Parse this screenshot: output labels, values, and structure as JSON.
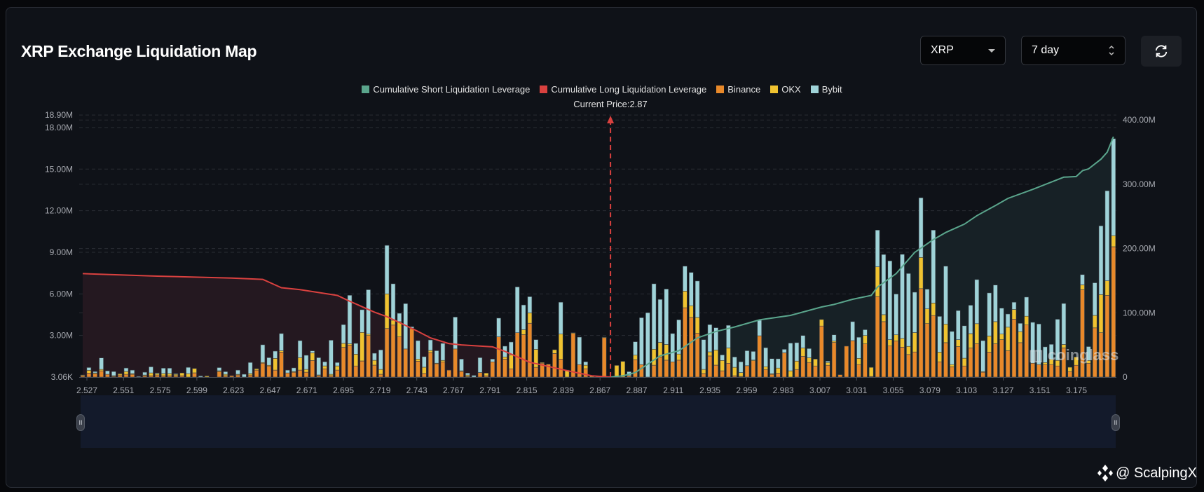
{
  "header": {
    "title": "XRP Exchange Liquidation Map",
    "symbol_select": {
      "value": "XRP",
      "icon": "caret-down-icon"
    },
    "range_select": {
      "value": "7 day",
      "icon": "up-down-chevron-icon"
    },
    "refresh_icon": "refresh-icon"
  },
  "watermarks": {
    "coinglass": "coinglass",
    "author": "@ ScalpingX"
  },
  "chart_data": {
    "type": "bar",
    "stacked": true,
    "legend": [
      {
        "name": "Cumulative Short Liquidation Leverage",
        "color": "#5aa58c"
      },
      {
        "name": "Cumulative Long Liquidation Leverage",
        "color": "#d9413f"
      },
      {
        "name": "Binance",
        "color": "#e8892a"
      },
      {
        "name": "OKX",
        "color": "#f0c330"
      },
      {
        "name": "Bybit",
        "color": "#9fd3d8"
      }
    ],
    "legend_position": "top-center",
    "current_price": {
      "label": "Current Price:2.87",
      "value": 2.87,
      "color": "#d9413f"
    },
    "x_tick_labels": [
      "2.527",
      "2.551",
      "2.575",
      "2.599",
      "2.623",
      "2.647",
      "2.671",
      "2.695",
      "2.719",
      "2.743",
      "2.767",
      "2.791",
      "2.815",
      "2.839",
      "2.867",
      "2.887",
      "2.911",
      "2.935",
      "2.959",
      "2.983",
      "3.007",
      "3.031",
      "3.055",
      "3.079",
      "3.103",
      "3.127",
      "3.151",
      "3.175"
    ],
    "y_left": {
      "ticks": [
        {
          "label": "3.06K",
          "value": 0.00306
        },
        {
          "label": "3.00M",
          "value": 3
        },
        {
          "label": "6.00M",
          "value": 6
        },
        {
          "label": "9.00M",
          "value": 9
        },
        {
          "label": "12.00M",
          "value": 12
        },
        {
          "label": "15.00M",
          "value": 15
        },
        {
          "label": "18.00M",
          "value": 18
        },
        {
          "label": "18.90M",
          "value": 18.9
        }
      ],
      "range_millions": [
        0,
        18.9
      ]
    },
    "y_right": {
      "ticks": [
        {
          "label": "0",
          "value": 0
        },
        {
          "label": "100.00M",
          "value": 100
        },
        {
          "label": "200.00M",
          "value": 200
        },
        {
          "label": "300.00M",
          "value": 300
        },
        {
          "label": "400.00M",
          "value": 400
        }
      ],
      "range_millions": [
        0,
        404
      ]
    },
    "grid": true,
    "x": [
      2.53,
      2.534,
      2.538,
      2.542,
      2.546,
      2.55,
      2.554,
      2.558,
      2.562,
      2.566,
      2.57,
      2.574,
      2.578,
      2.582,
      2.586,
      2.59,
      2.594,
      2.598,
      2.602,
      2.606,
      2.61,
      2.614,
      2.618,
      2.622,
      2.626,
      2.63,
      2.634,
      2.638,
      2.642,
      2.646,
      2.65,
      2.654,
      2.658,
      2.662,
      2.666,
      2.67,
      2.674,
      2.678,
      2.682,
      2.686,
      2.69,
      2.694,
      2.698,
      2.702,
      2.706,
      2.71,
      2.714,
      2.718,
      2.722,
      2.726,
      2.73,
      2.734,
      2.738,
      2.742,
      2.746,
      2.75,
      2.754,
      2.758,
      2.762,
      2.766,
      2.77,
      2.774,
      2.778,
      2.782,
      2.786,
      2.79,
      2.794,
      2.798,
      2.802,
      2.806,
      2.81,
      2.814,
      2.818,
      2.822,
      2.826,
      2.83,
      2.834,
      2.838,
      2.842,
      2.846,
      2.85,
      2.854,
      2.858,
      2.862,
      2.866,
      2.87,
      2.874,
      2.878,
      2.882,
      2.886,
      2.89,
      2.894,
      2.898,
      2.902,
      2.906,
      2.91,
      2.914,
      2.918,
      2.922,
      2.926,
      2.93,
      2.934,
      2.938,
      2.942,
      2.946,
      2.95,
      2.954,
      2.958,
      2.962,
      2.966,
      2.97,
      2.974,
      2.978,
      2.982,
      2.986,
      2.99,
      2.994,
      2.998,
      3.002,
      3.006,
      3.01,
      3.014,
      3.018,
      3.022,
      3.026,
      3.03,
      3.034,
      3.038,
      3.042,
      3.046,
      3.05,
      3.054,
      3.058,
      3.062,
      3.066,
      3.07,
      3.074,
      3.078,
      3.082,
      3.086,
      3.09,
      3.094,
      3.098,
      3.102,
      3.106,
      3.11,
      3.114,
      3.118,
      3.122,
      3.126,
      3.13,
      3.134,
      3.138,
      3.142,
      3.146,
      3.15,
      3.154,
      3.158,
      3.162,
      3.166,
      3.17,
      3.174,
      3.178,
      3.182,
      3.186,
      3.19,
      3.194
    ],
    "series": [
      {
        "name": "Binance",
        "unit": "M",
        "values": [
          0.1,
          0.29,
          0.25,
          0.45,
          0.2,
          0.05,
          0.15,
          0.2,
          0.2,
          0,
          0.1,
          0.1,
          0.15,
          0.1,
          0.1,
          0.1,
          0.1,
          0,
          0.3,
          0,
          0,
          0,
          0.4,
          0.1,
          0.1,
          0.15,
          0,
          0.15,
          0.5,
          1.0,
          0.8,
          0.5,
          1.8,
          0.3,
          0.35,
          0.5,
          0.35,
          1.2,
          0.1,
          0.6,
          0.1,
          0.5,
          2.14,
          2.3,
          0.8,
          1.16,
          3.0,
          0.86,
          0.2,
          3.5,
          3.75,
          2.9,
          2.03,
          3.5,
          1.15,
          0.26,
          1.77,
          0.97,
          1.1,
          0.5,
          2.03,
          0.42,
          0.05,
          0,
          0.33,
          0.1,
          1.1,
          2.9,
          1.3,
          0.6,
          3.2,
          3.07,
          3.88,
          0.7,
          1.0,
          0.93,
          1.7,
          1.3,
          0,
          3.15,
          0.9,
          0.6,
          0,
          0.03,
          2.85,
          0,
          0,
          0,
          0.1,
          1.25,
          0.9,
          0,
          0.85,
          1.45,
          1.22,
          1.1,
          1.22,
          5.0,
          4.3,
          3.15,
          0.25,
          1.52,
          0.86,
          0.45,
          1.0,
          0.1,
          0.05,
          0.82,
          1.18,
          2.98,
          0.55,
          0.2,
          0.27,
          1.75,
          0,
          0.55,
          1.5,
          1.05,
          0.8,
          3.68,
          0.85,
          2.5,
          0.17,
          2.23,
          2.63,
          0.9,
          2.4,
          0.05,
          5.8,
          4.0,
          2.24,
          2.6,
          2.16,
          1.63,
          1.81,
          6.38,
          3.86,
          4.44,
          1.1,
          2.48,
          0.74,
          2.2,
          0.8,
          2.1,
          2.4,
          0.35,
          1.8,
          2.4,
          2.7,
          1.9,
          4.18,
          2.48,
          3.76,
          1.0,
          0.9,
          0.9,
          0.9,
          0.8,
          2.1,
          0.4,
          0.85,
          6.3,
          1.0,
          3.55,
          3.2,
          5.9,
          9.4
        ]
      },
      {
        "name": "OKX",
        "unit": "M",
        "values": [
          0.05,
          0.2,
          0.05,
          0.1,
          0,
          0.05,
          0.09,
          0.2,
          0.05,
          0,
          0.05,
          0.2,
          0.1,
          0.15,
          0.15,
          0.1,
          0.2,
          0.25,
          0.32,
          0,
          0.08,
          0,
          0.05,
          0.1,
          0,
          0.05,
          0,
          0.1,
          0.1,
          0.05,
          0.05,
          0.85,
          0.1,
          0,
          0.05,
          0.9,
          0.2,
          0.55,
          0.05,
          0.2,
          0.1,
          0.3,
          0.29,
          0.1,
          0.85,
          2.06,
          0.1,
          0.35,
          0.35,
          2.5,
          0.35,
          1.1,
          0,
          0.03,
          0.15,
          0.45,
          0.15,
          0.03,
          0.1,
          0,
          0,
          0.03,
          0.1,
          0,
          0,
          0.19,
          0,
          0,
          0.15,
          1.0,
          0,
          0.35,
          0.75,
          1.3,
          0.05,
          0,
          0.27,
          1.8,
          0.5,
          0.05,
          0,
          0.25,
          0.07,
          0,
          0.03,
          0,
          0.84,
          1.13,
          0,
          0.33,
          0,
          0,
          1.16,
          1.05,
          1.13,
          0,
          0.44,
          1.2,
          0.85,
          1.15,
          0.3,
          0.3,
          1.09,
          0.75,
          1.1,
          0.6,
          0.27,
          0,
          0.05,
          0,
          0.2,
          0.05,
          0.38,
          0,
          0.45,
          0.6,
          0.6,
          0.35,
          0.5,
          0.47,
          0.2,
          0.1,
          0,
          0,
          0,
          0.45,
          0.6,
          0.65,
          2.15,
          0.5,
          0.46,
          0.45,
          0.63,
          0.58,
          1.4,
          2.25,
          1.06,
          0.9,
          0.7,
          1.34,
          0.16,
          0.5,
          0.56,
          1.03,
          1.45,
          0.05,
          1.16,
          1.6,
          0.4,
          1.7,
          0.7,
          0.8,
          0.63,
          0,
          0,
          0.15,
          0.4,
          0.4,
          0.25,
          0.31,
          0.6,
          0.35,
          0.2,
          0.9,
          2.75,
          1.05,
          0.8
        ]
      },
      {
        "name": "Bybit",
        "unit": "M",
        "values": [
          0,
          0.2,
          0.1,
          0.83,
          0.25,
          0.3,
          0,
          0.25,
          0.25,
          0.05,
          0.2,
          0.44,
          0.05,
          0.39,
          0.39,
          0.05,
          0,
          0.45,
          0,
          0.08,
          0,
          0,
          0.23,
          0.19,
          0,
          0.3,
          0.2,
          0.8,
          0,
          1.28,
          0.55,
          0.52,
          1.24,
          0.2,
          0.26,
          1.23,
          1.02,
          0.14,
          1.25,
          0.3,
          2.46,
          0.25,
          1.35,
          3.5,
          0.78,
          1.64,
          3.2,
          0.51,
          1.41,
          3.5,
          2.63,
          0.6,
          3.27,
          0.1,
          1.33,
          0.76,
          0.76,
          0.9,
          1.23,
          0,
          2.3,
          0.85,
          0.14,
          0.12,
          1.07,
          0,
          0.2,
          1.35,
          0.78,
          0.93,
          3.3,
          1.78,
          1.17,
          0.7,
          0,
          0,
          0,
          2.3,
          0,
          0,
          1.98,
          0.25,
          0,
          0,
          0,
          0.02,
          0,
          0,
          0.29,
          0.97,
          3.38,
          4.64,
          4.72,
          3.1,
          4.0,
          2.04,
          2.47,
          1.8,
          2.4,
          2.63,
          2.15,
          1.96,
          1.61,
          0.4,
          1.63,
          0.75,
          0.78,
          1.08,
          0.62,
          1.12,
          1.37,
          1.08,
          0.67,
          0.25,
          2.0,
          1.33,
          0.9,
          0.66,
          0,
          0,
          0.1,
          0.45,
          0,
          0,
          1.37,
          1.52,
          0.42,
          0,
          2.65,
          4.34,
          5.68,
          2.94,
          6.06,
          5.26,
          2.91,
          4.3,
          1.42,
          5.26,
          2.58,
          4.18,
          2.39,
          2.1,
          2.34,
          2.05,
          3.18,
          2.23,
          3.11,
          2.64,
          1.87,
          0.95,
          0.52,
          0.6,
          1.38,
          2.95,
          2.93,
          1.13,
          1.06,
          2.97,
          2.96,
          0,
          0,
          0.74,
          1.0,
          2.35,
          4.96,
          6.49,
          7.0
        ]
      }
    ],
    "cumulative_long": {
      "name": "Cumulative Long Liquidation Leverage",
      "axis": "right",
      "unit": "M",
      "points": [
        [
          2.53,
          161
        ],
        [
          2.578,
          157
        ],
        [
          2.626,
          154
        ],
        [
          2.646,
          152
        ],
        [
          2.658,
          139
        ],
        [
          2.67,
          136
        ],
        [
          2.686,
          130
        ],
        [
          2.694,
          127
        ],
        [
          2.702,
          118
        ],
        [
          2.718,
          101
        ],
        [
          2.726,
          94
        ],
        [
          2.734,
          85
        ],
        [
          2.746,
          71
        ],
        [
          2.754,
          61
        ],
        [
          2.766,
          52
        ],
        [
          2.774,
          50
        ],
        [
          2.794,
          47
        ],
        [
          2.802,
          40
        ],
        [
          2.818,
          23
        ],
        [
          2.842,
          10
        ],
        [
          2.858,
          2
        ],
        [
          2.87,
          0
        ]
      ]
    },
    "cumulative_short": {
      "name": "Cumulative Short Liquidation Leverage",
      "axis": "right",
      "unit": "M",
      "points": [
        [
          2.87,
          0
        ],
        [
          2.878,
          2
        ],
        [
          2.886,
          7
        ],
        [
          2.902,
          33
        ],
        [
          2.914,
          41
        ],
        [
          2.926,
          61
        ],
        [
          2.938,
          71
        ],
        [
          2.95,
          78
        ],
        [
          2.966,
          89
        ],
        [
          2.986,
          96
        ],
        [
          3.006,
          109
        ],
        [
          3.014,
          113
        ],
        [
          3.026,
          121
        ],
        [
          3.038,
          127
        ],
        [
          3.042,
          140
        ],
        [
          3.054,
          161
        ],
        [
          3.066,
          194
        ],
        [
          3.078,
          214
        ],
        [
          3.086,
          225
        ],
        [
          3.098,
          238
        ],
        [
          3.106,
          251
        ],
        [
          3.118,
          267
        ],
        [
          3.126,
          278
        ],
        [
          3.142,
          292
        ],
        [
          3.162,
          311
        ],
        [
          3.17,
          312
        ],
        [
          3.174,
          321
        ],
        [
          3.178,
          324
        ],
        [
          3.186,
          339
        ],
        [
          3.19,
          350
        ],
        [
          3.194,
          374
        ]
      ]
    }
  }
}
